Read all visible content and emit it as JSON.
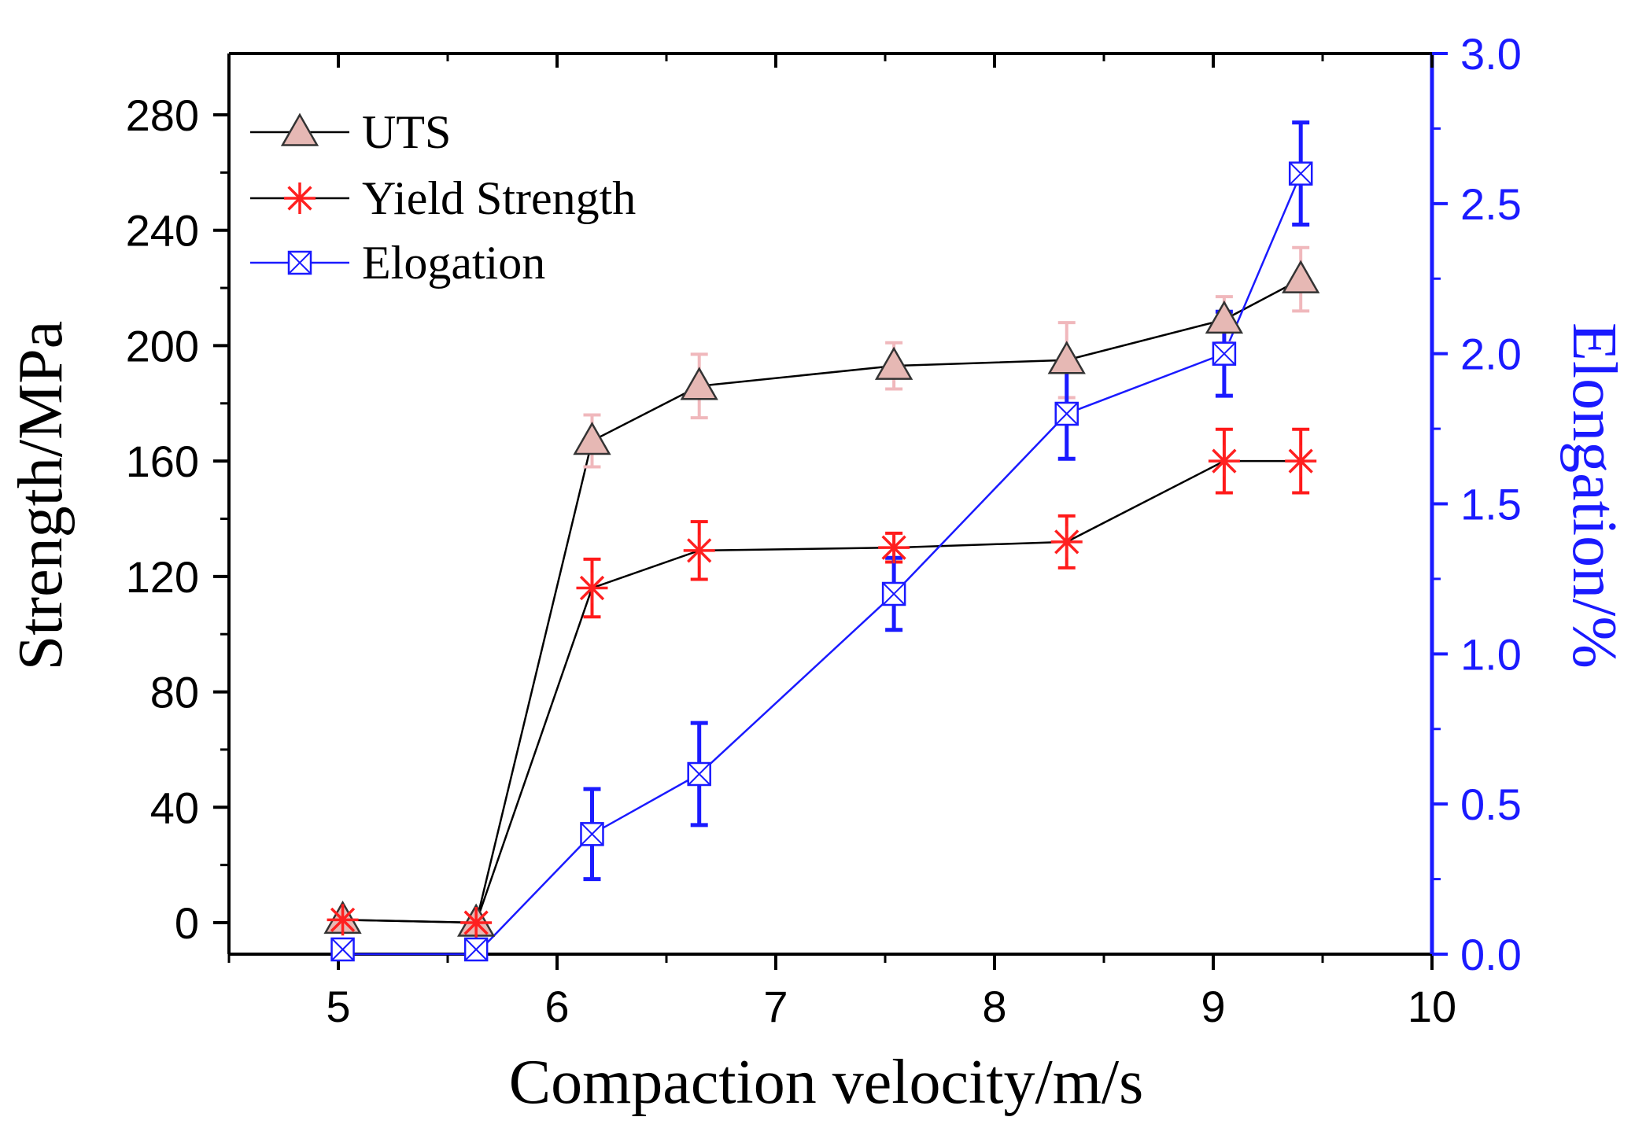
{
  "chart_data": {
    "type": "line",
    "title": "",
    "xlabel": "Compaction velocity/m/s",
    "ylabel": "Strength/MPa",
    "y2label": "Elongation/%",
    "xlim": [
      4.5,
      10
    ],
    "ylim": [
      -10,
      300
    ],
    "y2lim": [
      0,
      3.0
    ],
    "xticks": [
      5,
      6,
      7,
      8,
      9,
      10
    ],
    "yticks": [
      0,
      40,
      80,
      120,
      160,
      200,
      240,
      280
    ],
    "y2ticks": [
      0.0,
      0.5,
      1.0,
      1.5,
      2.0,
      2.5,
      3.0
    ],
    "y2tick_labels": [
      "0.0",
      "0.5",
      "1.0",
      "1.5",
      "2.0",
      "2.5",
      "3.0"
    ],
    "legend_position": "top-left",
    "x": [
      5.02,
      5.63,
      6.16,
      6.65,
      7.54,
      8.33,
      9.05,
      9.4
    ],
    "series": [
      {
        "name": "UTS",
        "axis": "left",
        "marker": "triangle",
        "line_color": "#000000",
        "marker_fill": "#e6b8b4",
        "marker_stroke": "#333333",
        "error_color": "#f0b8bc",
        "values": [
          1,
          0,
          167,
          186,
          193,
          195,
          209,
          223
        ],
        "errors": [
          0,
          0,
          9,
          11,
          8,
          13,
          8,
          11
        ]
      },
      {
        "name": "Yield Strength",
        "axis": "left",
        "marker": "asterisk",
        "line_color": "#000000",
        "marker_color": "#ff2020",
        "error_color": "#ff1a1a",
        "values": [
          1,
          0,
          116,
          129,
          130,
          132,
          160,
          160
        ],
        "errors": [
          0,
          0,
          10,
          10,
          5,
          9,
          11,
          11
        ]
      },
      {
        "name": "Elogation",
        "axis": "right",
        "marker": "crossed-square",
        "line_color": "#1a1aff",
        "marker_color": "#1a1aff",
        "error_color": "#1a1aff",
        "values": [
          0.0,
          0.0,
          0.4,
          0.6,
          1.2,
          1.8,
          2.0,
          2.6
        ],
        "errors": [
          0,
          0,
          0.15,
          0.17,
          0.12,
          0.15,
          0.14,
          0.17
        ]
      }
    ],
    "colors": {
      "axis": "#000000",
      "right_axis": "#1a1aff"
    }
  }
}
